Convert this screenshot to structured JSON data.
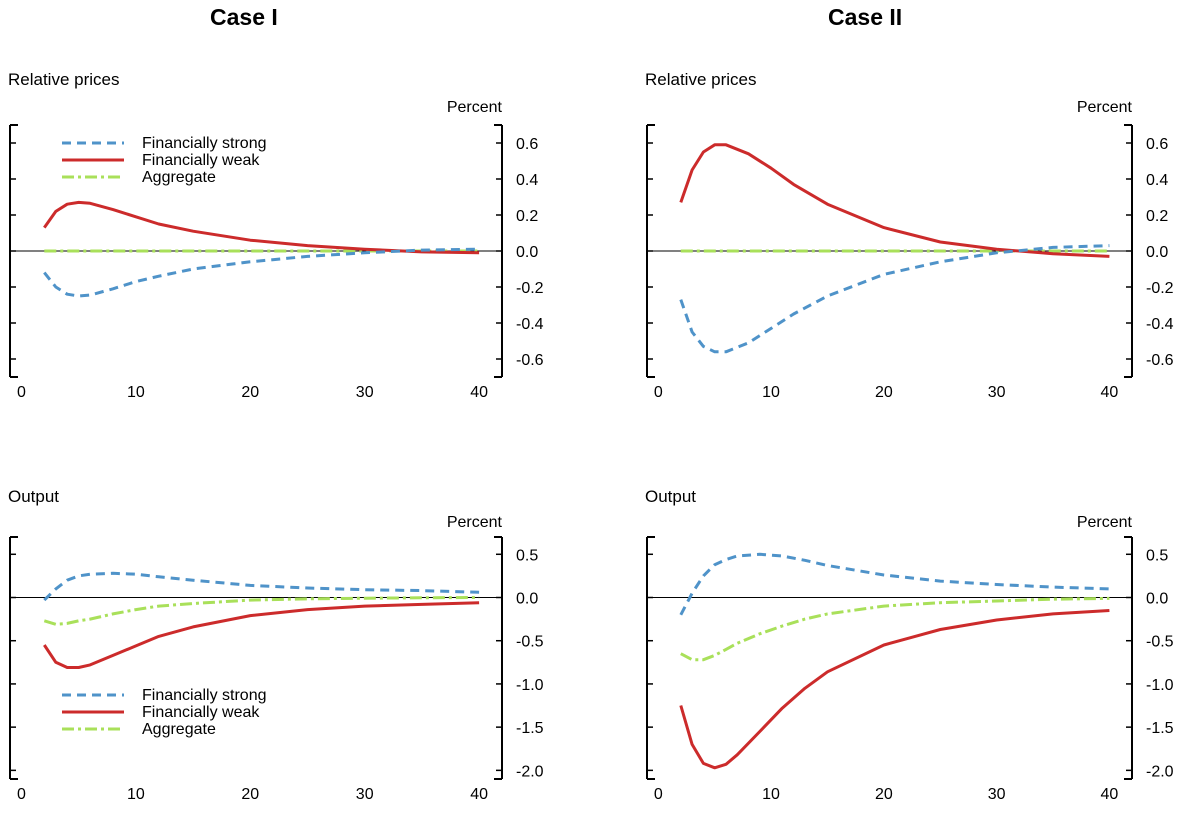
{
  "case_titles": [
    "Case I",
    "Case II"
  ],
  "unit_label": "Percent",
  "legend_labels": [
    "Financially strong",
    "Financially weak",
    "Aggregate"
  ],
  "colors": {
    "strong": "#4f93c9",
    "weak": "#cc2b2b",
    "aggregate": "#a9e05a"
  },
  "chart_data": [
    {
      "type": "line",
      "case": "Case I",
      "title": "Relative prices",
      "ylabel": "Percent",
      "xlim": [
        -1,
        42
      ],
      "ylim": [
        -0.7,
        0.7
      ],
      "xticks": [
        0,
        10,
        20,
        30,
        40
      ],
      "yticks": [
        0.6,
        0.4,
        0.2,
        0.0,
        -0.2,
        -0.4,
        -0.6
      ],
      "ytick_labels": [
        "0.6",
        "0.4",
        "0.2",
        "0.0",
        "-0.2",
        "-0.4",
        "-0.6"
      ],
      "legend": "top-left",
      "series": [
        {
          "name": "Financially strong",
          "style": "dashed",
          "x": [
            2,
            3,
            4,
            5,
            6,
            8,
            10,
            12,
            15,
            20,
            25,
            30,
            35,
            40
          ],
          "y": [
            -0.12,
            -0.2,
            -0.24,
            -0.25,
            -0.245,
            -0.21,
            -0.17,
            -0.14,
            -0.1,
            -0.06,
            -0.03,
            -0.01,
            0.005,
            0.01
          ]
        },
        {
          "name": "Financially weak",
          "style": "solid",
          "x": [
            2,
            3,
            4,
            5,
            6,
            8,
            10,
            12,
            15,
            20,
            25,
            30,
            35,
            40
          ],
          "y": [
            0.13,
            0.22,
            0.26,
            0.27,
            0.265,
            0.23,
            0.19,
            0.15,
            0.11,
            0.06,
            0.03,
            0.01,
            -0.005,
            -0.01
          ]
        },
        {
          "name": "Aggregate",
          "style": "dashdot",
          "x": [
            2,
            10,
            20,
            30,
            40
          ],
          "y": [
            0.0,
            0.0,
            0.0,
            0.0,
            0.0
          ]
        }
      ]
    },
    {
      "type": "line",
      "case": "Case II",
      "title": "Relative prices",
      "ylabel": "Percent",
      "xlim": [
        -1,
        42
      ],
      "ylim": [
        -0.7,
        0.7
      ],
      "xticks": [
        0,
        10,
        20,
        30,
        40
      ],
      "yticks": [
        0.6,
        0.4,
        0.2,
        0.0,
        -0.2,
        -0.4,
        -0.6
      ],
      "ytick_labels": [
        "0.6",
        "0.4",
        "0.2",
        "0.0",
        "-0.2",
        "-0.4",
        "-0.6"
      ],
      "series": [
        {
          "name": "Financially strong",
          "style": "dashed",
          "x": [
            2,
            3,
            4,
            5,
            6,
            8,
            10,
            12,
            15,
            20,
            25,
            30,
            35,
            40
          ],
          "y": [
            -0.27,
            -0.45,
            -0.53,
            -0.56,
            -0.56,
            -0.51,
            -0.43,
            -0.35,
            -0.25,
            -0.13,
            -0.06,
            -0.01,
            0.02,
            0.03
          ]
        },
        {
          "name": "Financially weak",
          "style": "solid",
          "x": [
            2,
            3,
            4,
            5,
            6,
            8,
            10,
            12,
            15,
            20,
            25,
            30,
            35,
            40
          ],
          "y": [
            0.27,
            0.45,
            0.55,
            0.59,
            0.59,
            0.54,
            0.46,
            0.37,
            0.26,
            0.13,
            0.05,
            0.01,
            -0.015,
            -0.03
          ]
        },
        {
          "name": "Aggregate",
          "style": "dashdot",
          "x": [
            2,
            10,
            20,
            30,
            40
          ],
          "y": [
            0.0,
            0.0,
            0.0,
            0.0,
            0.0
          ]
        }
      ]
    },
    {
      "type": "line",
      "case": "Case I",
      "title": "Output",
      "ylabel": "Percent",
      "xlim": [
        -1,
        42
      ],
      "ylim": [
        -2.1,
        0.7
      ],
      "xticks": [
        0,
        10,
        20,
        30,
        40
      ],
      "yticks": [
        0.5,
        0.0,
        -0.5,
        -1.0,
        -1.5,
        -2.0
      ],
      "ytick_labels": [
        "0.5",
        "0.0",
        "-0.5",
        "-1.0",
        "-1.5",
        "-2.0"
      ],
      "legend": "bottom-left",
      "series": [
        {
          "name": "Financially strong",
          "style": "dashed",
          "x": [
            2,
            3,
            4,
            5,
            6,
            8,
            10,
            12,
            15,
            20,
            25,
            30,
            35,
            40
          ],
          "y": [
            -0.03,
            0.1,
            0.2,
            0.25,
            0.27,
            0.28,
            0.27,
            0.24,
            0.2,
            0.14,
            0.11,
            0.09,
            0.08,
            0.06
          ]
        },
        {
          "name": "Financially weak",
          "style": "solid",
          "x": [
            2,
            3,
            4,
            5,
            6,
            8,
            10,
            12,
            15,
            20,
            25,
            30,
            35,
            40
          ],
          "y": [
            -0.55,
            -0.75,
            -0.81,
            -0.81,
            -0.78,
            -0.67,
            -0.56,
            -0.45,
            -0.34,
            -0.21,
            -0.14,
            -0.1,
            -0.08,
            -0.06
          ]
        },
        {
          "name": "Aggregate",
          "style": "dashdot",
          "x": [
            2,
            3,
            4,
            5,
            6,
            8,
            10,
            12,
            15,
            20,
            25,
            30,
            35,
            40
          ],
          "y": [
            -0.27,
            -0.31,
            -0.3,
            -0.27,
            -0.25,
            -0.19,
            -0.14,
            -0.1,
            -0.07,
            -0.03,
            -0.015,
            -0.008,
            -0.004,
            0.0
          ]
        }
      ]
    },
    {
      "type": "line",
      "case": "Case II",
      "title": "Output",
      "ylabel": "Percent",
      "xlim": [
        -1,
        42
      ],
      "ylim": [
        -2.1,
        0.7
      ],
      "xticks": [
        0,
        10,
        20,
        30,
        40
      ],
      "yticks": [
        0.5,
        0.0,
        -0.5,
        -1.0,
        -1.5,
        -2.0
      ],
      "ytick_labels": [
        "0.5",
        "0.0",
        "-0.5",
        "-1.0",
        "-1.5",
        "-2.0"
      ],
      "series": [
        {
          "name": "Financially strong",
          "style": "dashed",
          "x": [
            2,
            3,
            4,
            5,
            6,
            7,
            9,
            11,
            13,
            15,
            20,
            25,
            30,
            35,
            40
          ],
          "y": [
            -0.2,
            0.05,
            0.25,
            0.38,
            0.44,
            0.48,
            0.5,
            0.48,
            0.43,
            0.37,
            0.26,
            0.19,
            0.15,
            0.12,
            0.1
          ]
        },
        {
          "name": "Financially weak",
          "style": "solid",
          "x": [
            2,
            3,
            4,
            5,
            6,
            7,
            9,
            11,
            13,
            15,
            20,
            25,
            30,
            35,
            40
          ],
          "y": [
            -1.25,
            -1.7,
            -1.92,
            -1.97,
            -1.93,
            -1.82,
            -1.55,
            -1.28,
            -1.05,
            -0.86,
            -0.55,
            -0.37,
            -0.26,
            -0.19,
            -0.15
          ]
        },
        {
          "name": "Aggregate",
          "style": "dashdot",
          "x": [
            2,
            3,
            4,
            5,
            6,
            7,
            9,
            11,
            13,
            15,
            20,
            25,
            30,
            35,
            40
          ],
          "y": [
            -0.65,
            -0.72,
            -0.72,
            -0.67,
            -0.6,
            -0.53,
            -0.42,
            -0.33,
            -0.25,
            -0.19,
            -0.1,
            -0.06,
            -0.04,
            -0.02,
            -0.01
          ]
        }
      ]
    }
  ]
}
